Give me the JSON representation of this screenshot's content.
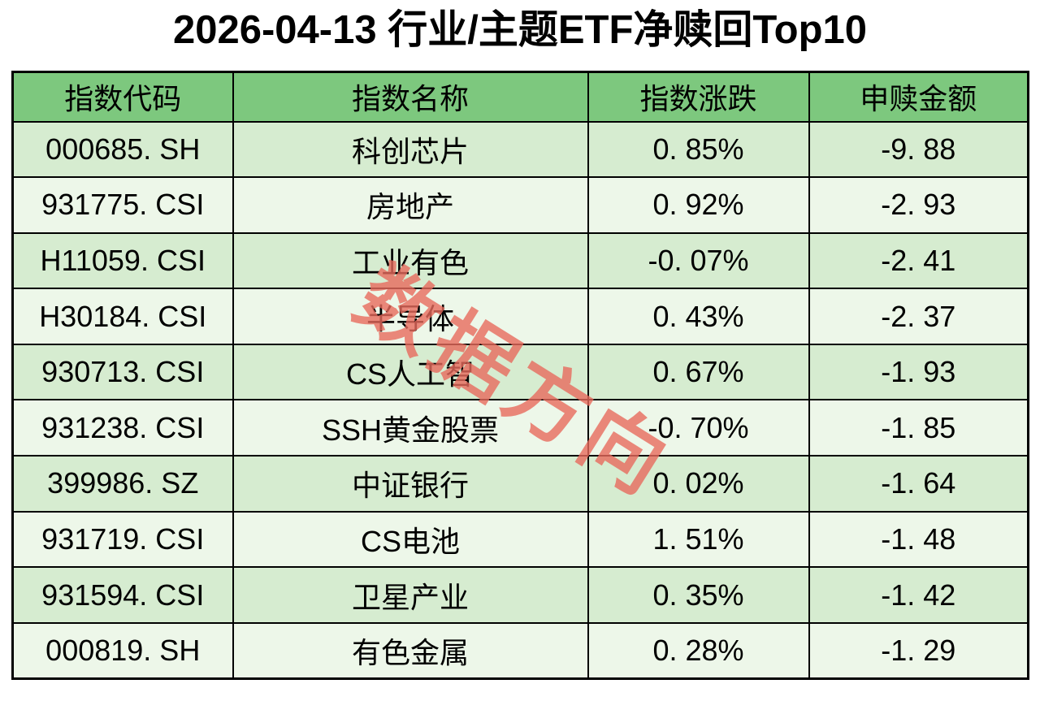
{
  "title": "2026-04-13 行业/主题ETF净赎回Top10",
  "watermark": "数据方向",
  "colors": {
    "header_green": "#7dc87d",
    "row_dark_green": "#d6ecd0",
    "row_light_green": "#edf7e9",
    "border_black": "#000000",
    "watermark_salmon": "#e76a5c",
    "title_black": "#000000",
    "page_background": "#ffffff"
  },
  "table": {
    "columns": [
      "指数代码",
      "指数名称",
      "指数涨跌",
      "申赎金额"
    ],
    "rows": [
      {
        "code": "000685. SH",
        "name": "科创芯片",
        "change": "0. 85%",
        "amount": "-9. 88"
      },
      {
        "code": "931775. CSI",
        "name": "房地产",
        "change": "0. 92%",
        "amount": "-2. 93"
      },
      {
        "code": "H11059. CSI",
        "name": "工业有色",
        "change": "-0. 07%",
        "amount": "-2. 41"
      },
      {
        "code": "H30184. CSI",
        "name": "半导体",
        "change": "0. 43%",
        "amount": "-2. 37"
      },
      {
        "code": "930713. CSI",
        "name": "CS人工智",
        "change": "0. 67%",
        "amount": "-1. 93"
      },
      {
        "code": "931238. CSI",
        "name": "SSH黄金股票",
        "change": "-0. 70%",
        "amount": "-1. 85"
      },
      {
        "code": "399986. SZ",
        "name": "中证银行",
        "change": "0. 02%",
        "amount": "-1. 64"
      },
      {
        "code": "931719. CSI",
        "name": "CS电池",
        "change": "1. 51%",
        "amount": "-1. 48"
      },
      {
        "code": "931594. CSI",
        "name": "卫星产业",
        "change": "0. 35%",
        "amount": "-1. 42"
      },
      {
        "code": "000819. SH",
        "name": "有色金属",
        "change": "0. 28%",
        "amount": "-1. 29"
      }
    ]
  },
  "chart_data": {
    "type": "table",
    "title": "2026-04-13 行业/主题ETF净赎回Top10",
    "columns": [
      "指数代码",
      "指数名称",
      "指数涨跌",
      "申赎金额"
    ],
    "rows": [
      [
        "000685.SH",
        "科创芯片",
        "0.85%",
        -9.88
      ],
      [
        "931775.CSI",
        "房地产",
        "0.92%",
        -2.93
      ],
      [
        "H11059.CSI",
        "工业有色",
        "-0.07%",
        -2.41
      ],
      [
        "H30184.CSI",
        "半导体",
        "0.43%",
        -2.37
      ],
      [
        "930713.CSI",
        "CS人工智",
        "0.67%",
        -1.93
      ],
      [
        "931238.CSI",
        "SSH黄金股票",
        "-0.70%",
        -1.85
      ],
      [
        "399986.SZ",
        "中证银行",
        "0.02%",
        -1.64
      ],
      [
        "931719.CSI",
        "CS电池",
        "1.51%",
        -1.48
      ],
      [
        "931594.CSI",
        "卫星产业",
        "0.35%",
        -1.42
      ],
      [
        "000819.SH",
        "有色金属",
        "0.28%",
        -1.29
      ]
    ],
    "watermark_text": "数据方向",
    "layout_hints": {
      "header_background": "#7dc87d",
      "row_stripes": [
        "#d6ecd0",
        "#edf7e9"
      ],
      "watermark_rotation_deg": 32,
      "all_cells_centered": true
    }
  }
}
